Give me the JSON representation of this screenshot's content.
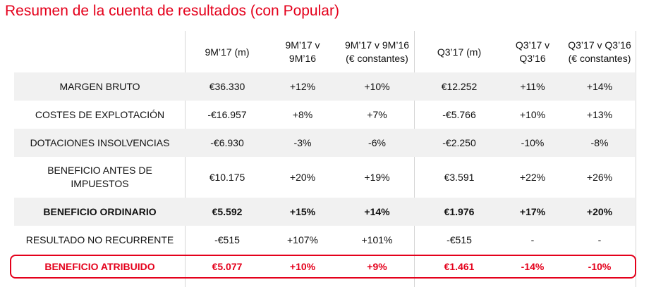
{
  "title": "Resumen de la cuenta de resultados (con Popular)",
  "colors": {
    "accent": "#e4001b",
    "row_shade": "#f1f1f1",
    "divider": "#d6d6d6"
  },
  "columns": [
    "9M’17 (m)",
    "9M’17 v\n9M’16",
    "9M’17 v 9M’16\n(€ constantes)",
    "Q3’17 (m)",
    "Q3’17 v\nQ3’16",
    "Q3’17 v Q3’16\n(€ constantes)"
  ],
  "rows": [
    {
      "label": "MARGEN BRUTO",
      "values": [
        "€36.330",
        "+12%",
        "+10%",
        "€12.252",
        "+11%",
        "+14%"
      ]
    },
    {
      "label": "COSTES DE EXPLOTACIÓN",
      "values": [
        "-€16.957",
        "+8%",
        "+7%",
        "-€5.766",
        "+10%",
        "+13%"
      ]
    },
    {
      "label": "DOTACIONES INSOLVENCIAS",
      "values": [
        "-€6.930",
        "-3%",
        "-6%",
        "-€2.250",
        "-10%",
        "-8%"
      ]
    },
    {
      "label": "BENEFICIO ANTES DE\nIMPUESTOS",
      "values": [
        "€10.175",
        "+20%",
        "+19%",
        "€3.591",
        "+22%",
        "+26%"
      ]
    },
    {
      "label": "BENEFICIO ORDINARIO",
      "values": [
        "€5.592",
        "+15%",
        "+14%",
        "€1.976",
        "+17%",
        "+20%"
      ]
    },
    {
      "label": "RESULTADO NO RECURRENTE",
      "values": [
        "-€515",
        "+107%",
        "+101%",
        "-€515",
        "-",
        "-"
      ]
    },
    {
      "label": "BENEFICIO ATRIBUIDO",
      "values": [
        "€5.077",
        "+10%",
        "+9%",
        "€1.461",
        "-14%",
        "-10%"
      ]
    }
  ]
}
